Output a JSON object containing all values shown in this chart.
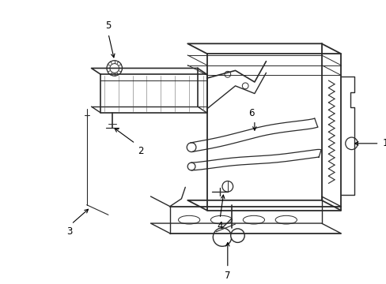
{
  "bg_color": "#ffffff",
  "line_color": "#2a2a2a",
  "fig_width": 4.89,
  "fig_height": 3.6,
  "dpi": 100,
  "label_fontsize": 8.5
}
